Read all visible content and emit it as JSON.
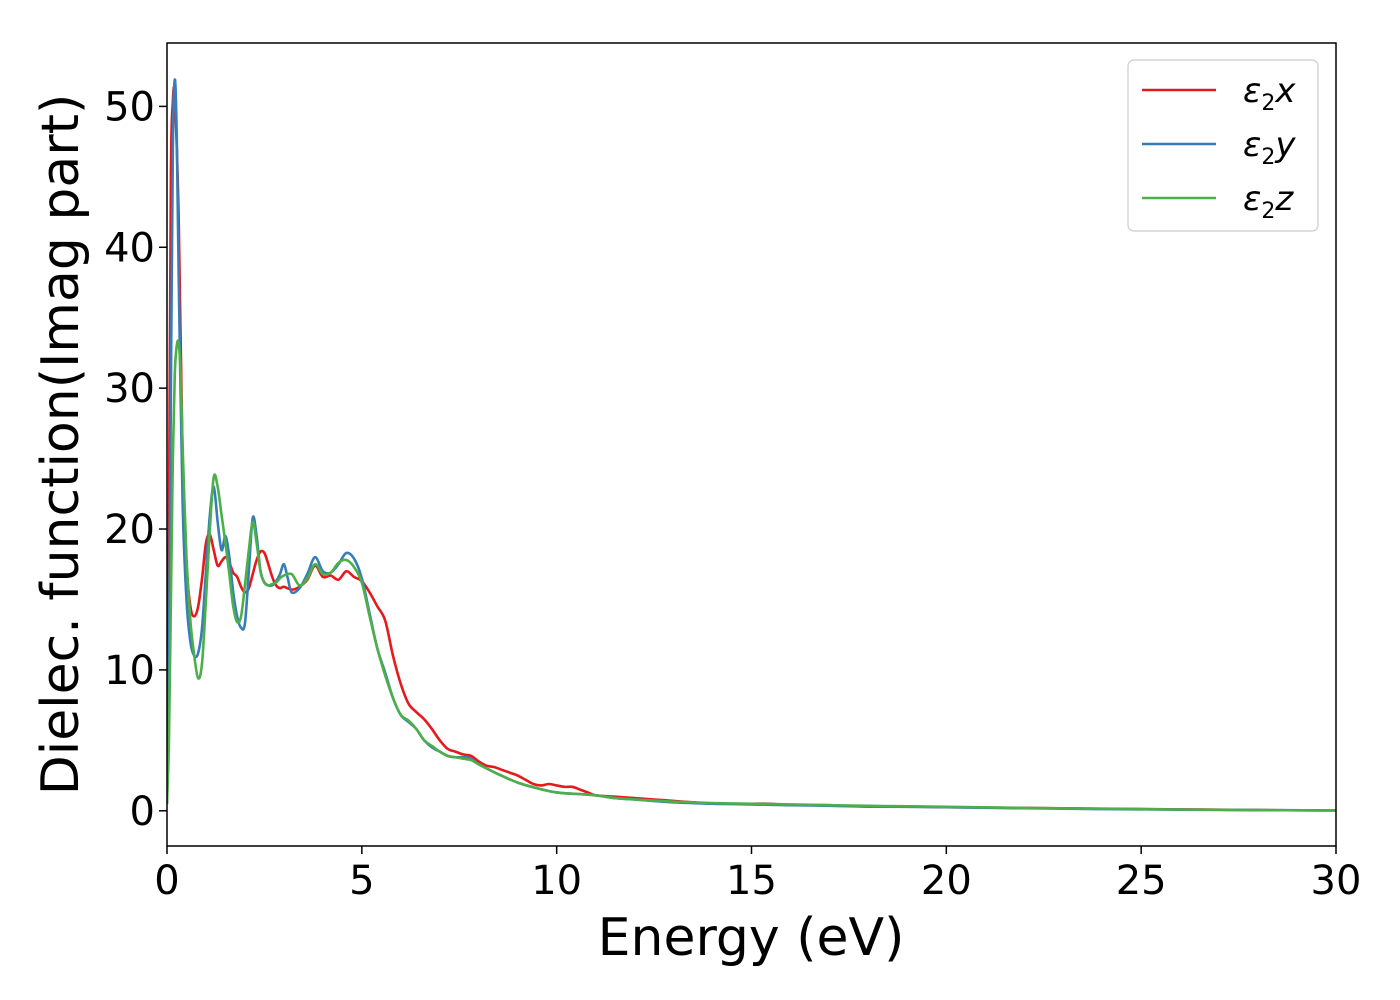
{
  "chart_data": {
    "type": "line",
    "title": "",
    "xlabel": "Energy (eV)",
    "ylabel": "Dielec. function(Imag part)",
    "xlim": [
      0,
      30
    ],
    "ylim": [
      -2.5,
      54.5
    ],
    "xticks": [
      0,
      5,
      10,
      15,
      20,
      25,
      30
    ],
    "yticks": [
      0,
      10,
      20,
      30,
      40,
      50
    ],
    "grid": false,
    "legend_position": "top-right",
    "series": [
      {
        "name": "ε2x",
        "symbol": "ε",
        "sub": "2",
        "axis": "x",
        "color": "#e41a1c",
        "x": [
          0,
          0.05,
          0.1,
          0.15,
          0.2,
          0.3,
          0.4,
          0.5,
          0.6,
          0.7,
          0.8,
          0.9,
          1.0,
          1.1,
          1.2,
          1.3,
          1.4,
          1.5,
          1.6,
          1.7,
          1.8,
          1.9,
          2.0,
          2.1,
          2.2,
          2.3,
          2.4,
          2.5,
          2.6,
          2.7,
          2.8,
          2.9,
          3.0,
          3.2,
          3.4,
          3.6,
          3.8,
          4.0,
          4.2,
          4.4,
          4.6,
          4.8,
          5.0,
          5.2,
          5.4,
          5.6,
          5.8,
          6.0,
          6.2,
          6.4,
          6.6,
          6.8,
          7.0,
          7.2,
          7.4,
          7.6,
          7.8,
          8.0,
          8.2,
          8.4,
          8.6,
          8.8,
          9.0,
          9.2,
          9.4,
          9.6,
          9.8,
          10.0,
          10.2,
          10.4,
          10.6,
          10.8,
          11.0,
          11.5,
          12.0,
          12.5,
          13.0,
          13.5,
          14.0,
          14.5,
          15.0,
          15.5,
          16.0,
          17.0,
          18.0,
          19.0,
          20.0,
          22.0,
          24.0,
          26.0,
          28.0,
          30.0
        ],
        "values": [
          0.5,
          20.0,
          45.0,
          50.3,
          50.6,
          42.0,
          25.0,
          17.5,
          14.5,
          13.8,
          14.5,
          16.5,
          19.0,
          19.6,
          18.5,
          17.4,
          17.7,
          18.0,
          17.6,
          16.9,
          16.6,
          15.9,
          15.5,
          15.8,
          16.8,
          17.8,
          18.4,
          18.3,
          17.5,
          16.6,
          16.0,
          15.8,
          15.9,
          15.7,
          15.9,
          16.4,
          17.4,
          16.6,
          16.7,
          16.4,
          17.0,
          16.6,
          16.3,
          15.5,
          14.5,
          13.5,
          11.0,
          9.0,
          7.6,
          7.0,
          6.5,
          5.8,
          5.0,
          4.4,
          4.2,
          4.0,
          3.9,
          3.5,
          3.2,
          3.1,
          2.9,
          2.7,
          2.5,
          2.2,
          1.9,
          1.8,
          1.9,
          1.8,
          1.7,
          1.7,
          1.5,
          1.3,
          1.1,
          1.0,
          0.9,
          0.8,
          0.7,
          0.6,
          0.5,
          0.5,
          0.5,
          0.5,
          0.4,
          0.4,
          0.3,
          0.3,
          0.25,
          0.2,
          0.15,
          0.1,
          0.05,
          0.02
        ]
      },
      {
        "name": "ε2y",
        "symbol": "ε",
        "sub": "2",
        "axis": "y",
        "color": "#377eb8",
        "x": [
          0,
          0.05,
          0.1,
          0.15,
          0.2,
          0.25,
          0.3,
          0.4,
          0.5,
          0.6,
          0.7,
          0.8,
          0.9,
          1.0,
          1.1,
          1.2,
          1.3,
          1.4,
          1.5,
          1.6,
          1.7,
          1.8,
          1.9,
          2.0,
          2.1,
          2.2,
          2.3,
          2.4,
          2.5,
          2.6,
          2.7,
          2.8,
          2.9,
          3.0,
          3.1,
          3.2,
          3.4,
          3.6,
          3.8,
          4.0,
          4.2,
          4.4,
          4.6,
          4.8,
          5.0,
          5.2,
          5.4,
          5.6,
          5.8,
          6.0,
          6.2,
          6.4,
          6.6,
          6.8,
          7.0,
          7.2,
          7.4,
          7.6,
          7.8,
          8.0,
          8.5,
          9.0,
          9.5,
          10.0,
          10.5,
          11.0,
          11.5,
          12.0,
          13.0,
          14.0,
          15.0,
          16.0,
          17.0,
          18.0,
          20.0,
          22.0,
          24.0,
          26.0,
          28.0,
          30.0
        ],
        "values": [
          0.5,
          10.0,
          30.0,
          47.0,
          51.9,
          48.0,
          38.0,
          22.0,
          15.0,
          12.0,
          11.0,
          11.2,
          13.0,
          17.0,
          21.0,
          23.0,
          20.5,
          18.5,
          19.5,
          18.0,
          15.5,
          13.8,
          13.0,
          13.3,
          17.0,
          20.8,
          19.5,
          17.0,
          16.2,
          16.0,
          16.0,
          16.3,
          16.8,
          17.5,
          16.5,
          15.5,
          15.8,
          16.8,
          18.0,
          17.0,
          16.9,
          17.5,
          18.3,
          17.9,
          16.5,
          14.0,
          11.5,
          9.8,
          8.0,
          6.8,
          6.3,
          5.8,
          5.0,
          4.5,
          4.2,
          3.9,
          3.8,
          3.8,
          3.7,
          3.3,
          2.6,
          2.0,
          1.6,
          1.3,
          1.2,
          1.1,
          0.9,
          0.8,
          0.6,
          0.5,
          0.45,
          0.4,
          0.35,
          0.3,
          0.25,
          0.18,
          0.12,
          0.08,
          0.05,
          0.02
        ]
      },
      {
        "name": "ε2z",
        "symbol": "ε",
        "sub": "2",
        "axis": "z",
        "color": "#4daf4a",
        "x": [
          0,
          0.05,
          0.1,
          0.15,
          0.2,
          0.25,
          0.3,
          0.35,
          0.4,
          0.5,
          0.6,
          0.7,
          0.8,
          0.9,
          1.0,
          1.1,
          1.2,
          1.3,
          1.4,
          1.5,
          1.6,
          1.7,
          1.8,
          1.9,
          2.0,
          2.1,
          2.2,
          2.3,
          2.4,
          2.5,
          2.6,
          2.7,
          2.8,
          2.9,
          3.0,
          3.2,
          3.4,
          3.6,
          3.8,
          4.0,
          4.2,
          4.4,
          4.6,
          4.8,
          5.0,
          5.2,
          5.4,
          5.6,
          5.8,
          6.0,
          6.2,
          6.4,
          6.6,
          6.8,
          7.0,
          7.2,
          7.4,
          7.6,
          7.8,
          8.0,
          8.5,
          9.0,
          9.5,
          10.0,
          10.5,
          11.0,
          11.5,
          12.0,
          13.0,
          14.0,
          15.0,
          16.0,
          17.0,
          18.0,
          20.0,
          22.0,
          24.0,
          26.0,
          28.0,
          30.0
        ],
        "values": [
          0.5,
          5.0,
          15.0,
          25.0,
          31.0,
          33.0,
          33.2,
          31.0,
          26.0,
          18.0,
          13.5,
          11.0,
          9.4,
          10.5,
          15.0,
          20.0,
          23.7,
          23.0,
          21.0,
          19.0,
          16.8,
          14.5,
          13.4,
          13.8,
          16.0,
          18.5,
          20.5,
          19.0,
          17.0,
          16.2,
          16.0,
          16.1,
          16.2,
          16.5,
          16.7,
          16.8,
          16.0,
          16.5,
          17.5,
          16.8,
          16.9,
          17.6,
          17.8,
          17.3,
          16.2,
          13.8,
          11.5,
          9.6,
          8.0,
          6.8,
          6.4,
          5.8,
          5.0,
          4.6,
          4.2,
          3.9,
          3.8,
          3.7,
          3.6,
          3.3,
          2.6,
          2.0,
          1.6,
          1.3,
          1.2,
          1.1,
          0.9,
          0.8,
          0.65,
          0.55,
          0.5,
          0.45,
          0.4,
          0.35,
          0.28,
          0.2,
          0.14,
          0.09,
          0.05,
          0.02
        ]
      }
    ]
  }
}
